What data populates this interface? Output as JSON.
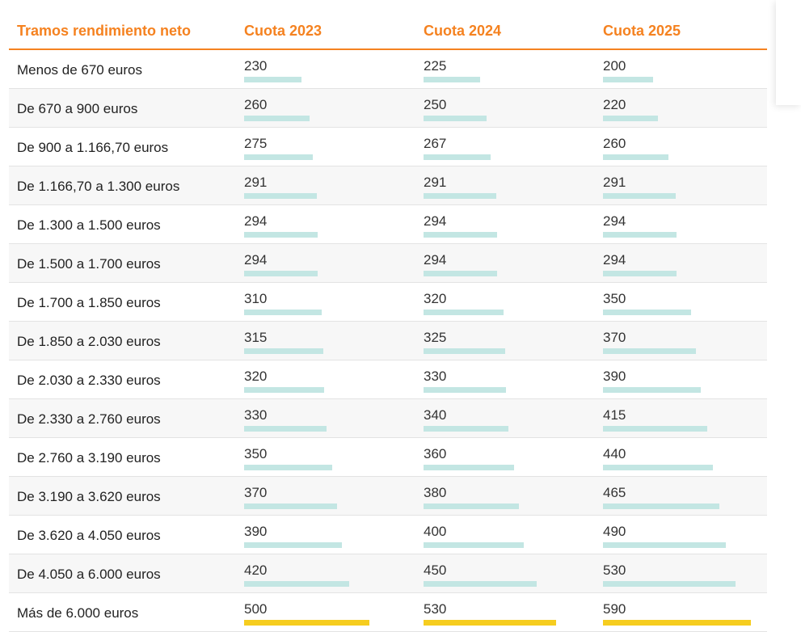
{
  "chart_data": {
    "type": "table",
    "columns": [
      "Tramos rendimiento neto",
      "Cuota 2023",
      "Cuota 2024",
      "Cuota 2025"
    ],
    "bar_max": 590,
    "bar_color": "#c3e6e3",
    "highlight_bar_color": "#f6cd1f",
    "rows": [
      {
        "label": "Menos de 670 euros",
        "values": [
          230,
          225,
          200
        ],
        "highlight": false
      },
      {
        "label": "De 670 a 900 euros",
        "values": [
          260,
          250,
          220
        ],
        "highlight": false
      },
      {
        "label": "De 900 a 1.166,70 euros",
        "values": [
          275,
          267,
          260
        ],
        "highlight": false
      },
      {
        "label": "De 1.166,70 a 1.300 euros",
        "values": [
          291,
          291,
          291
        ],
        "highlight": false
      },
      {
        "label": "De 1.300 a 1.500 euros",
        "values": [
          294,
          294,
          294
        ],
        "highlight": false
      },
      {
        "label": "De 1.500 a 1.700 euros",
        "values": [
          294,
          294,
          294
        ],
        "highlight": false
      },
      {
        "label": "De 1.700 a 1.850 euros",
        "values": [
          310,
          320,
          350
        ],
        "highlight": false
      },
      {
        "label": "De 1.850 a 2.030 euros",
        "values": [
          315,
          325,
          370
        ],
        "highlight": false
      },
      {
        "label": "De 2.030 a 2.330 euros",
        "values": [
          320,
          330,
          390
        ],
        "highlight": false
      },
      {
        "label": "De 2.330 a 2.760 euros",
        "values": [
          330,
          340,
          415
        ],
        "highlight": false
      },
      {
        "label": "De 2.760 a 3.190 euros",
        "values": [
          350,
          360,
          440
        ],
        "highlight": false
      },
      {
        "label": "De 3.190 a 3.620 euros",
        "values": [
          370,
          380,
          465
        ],
        "highlight": false
      },
      {
        "label": "De 3.620 a 4.050 euros",
        "values": [
          390,
          400,
          490
        ],
        "highlight": false
      },
      {
        "label": "De 4.050 a 6.000 euros",
        "values": [
          420,
          450,
          530
        ],
        "highlight": false
      },
      {
        "label": "Más de 6.000 euros",
        "values": [
          500,
          530,
          590
        ],
        "highlight": true
      }
    ]
  }
}
